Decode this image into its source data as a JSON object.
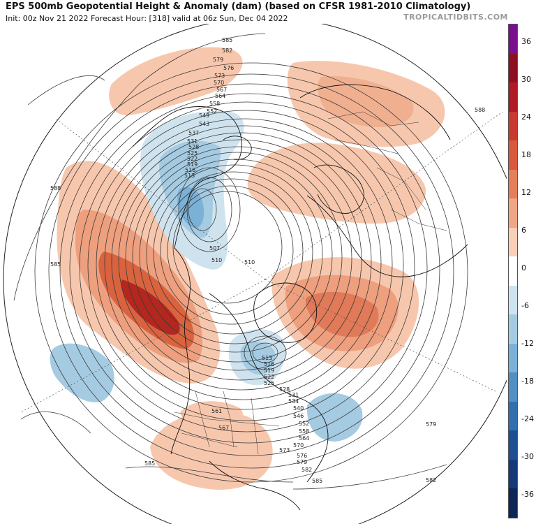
{
  "header": {
    "title": "EPS 500mb Geopotential Height & Anomaly (dam) (based on CFSR 1981-2010 Climatology)",
    "subtitle": "Init: 00z Nov 21 2022   Forecast Hour: [318]   valid at 06z Sun, Dec 04 2022",
    "brand": "TROPICALTIDBITS.COM"
  },
  "colorbar": {
    "labels": [
      "36",
      "30",
      "24",
      "18",
      "12",
      "6",
      "0",
      "-6",
      "-12",
      "-18",
      "-24",
      "-30",
      "-36"
    ],
    "colors": [
      "#7a0f8e",
      "#8e0e22",
      "#b01a25",
      "#c9392f",
      "#d9593e",
      "#e57e5b",
      "#f0a585",
      "#f9cfb8",
      "#ffffff",
      "#cfe3ef",
      "#a5cbe2",
      "#7bb1d6",
      "#528fc2",
      "#326fae",
      "#1e4f93",
      "#153a79",
      "#0d2657"
    ]
  },
  "contour_labels": [
    {
      "id": "585-top",
      "text": "585"
    },
    {
      "id": "582-top",
      "text": "582"
    },
    {
      "id": "579-top",
      "text": "579"
    },
    {
      "id": "576",
      "text": "576"
    },
    {
      "id": "573",
      "text": "573"
    },
    {
      "id": "570",
      "text": "570"
    },
    {
      "id": "567",
      "text": "567"
    },
    {
      "id": "564",
      "text": "564"
    },
    {
      "id": "558",
      "text": "558"
    },
    {
      "id": "552",
      "text": "552"
    },
    {
      "id": "549",
      "text": "549"
    },
    {
      "id": "543",
      "text": "543"
    },
    {
      "id": "537",
      "text": "537"
    },
    {
      "id": "531",
      "text": "531"
    },
    {
      "id": "528",
      "text": "528"
    },
    {
      "id": "525",
      "text": "525"
    },
    {
      "id": "522",
      "text": "522"
    },
    {
      "id": "519",
      "text": "519"
    },
    {
      "id": "516",
      "text": "516"
    },
    {
      "id": "513-w",
      "text": "513"
    },
    {
      "id": "507",
      "text": "507"
    },
    {
      "id": "510-w",
      "text": "510"
    },
    {
      "id": "510-c",
      "text": "510"
    },
    {
      "id": "588-left",
      "text": "588"
    },
    {
      "id": "585-left",
      "text": "585"
    },
    {
      "id": "588-right",
      "text": "588"
    },
    {
      "id": "513-e",
      "text": "513"
    },
    {
      "id": "516-e",
      "text": "516"
    },
    {
      "id": "519-e",
      "text": "519"
    },
    {
      "id": "522-e",
      "text": "522"
    },
    {
      "id": "525-e",
      "text": "525"
    },
    {
      "id": "528-e",
      "text": "528"
    },
    {
      "id": "531-e",
      "text": "531"
    },
    {
      "id": "534-e",
      "text": "534"
    },
    {
      "id": "540-e",
      "text": "540"
    },
    {
      "id": "546-e",
      "text": "546"
    },
    {
      "id": "552-e",
      "text": "552"
    },
    {
      "id": "558-e",
      "text": "558"
    },
    {
      "id": "564-e",
      "text": "564"
    },
    {
      "id": "570-e",
      "text": "570"
    },
    {
      "id": "573-e",
      "text": "573"
    },
    {
      "id": "576-e",
      "text": "576"
    },
    {
      "id": "579-e",
      "text": "579"
    },
    {
      "id": "582-e",
      "text": "582"
    },
    {
      "id": "585-bottom",
      "text": "585"
    },
    {
      "id": "561",
      "text": "561"
    },
    {
      "id": "567-us",
      "text": "567"
    },
    {
      "id": "585-bl",
      "text": "585"
    },
    {
      "id": "579-right",
      "text": "579"
    },
    {
      "id": "582-right",
      "text": "582"
    }
  ]
}
